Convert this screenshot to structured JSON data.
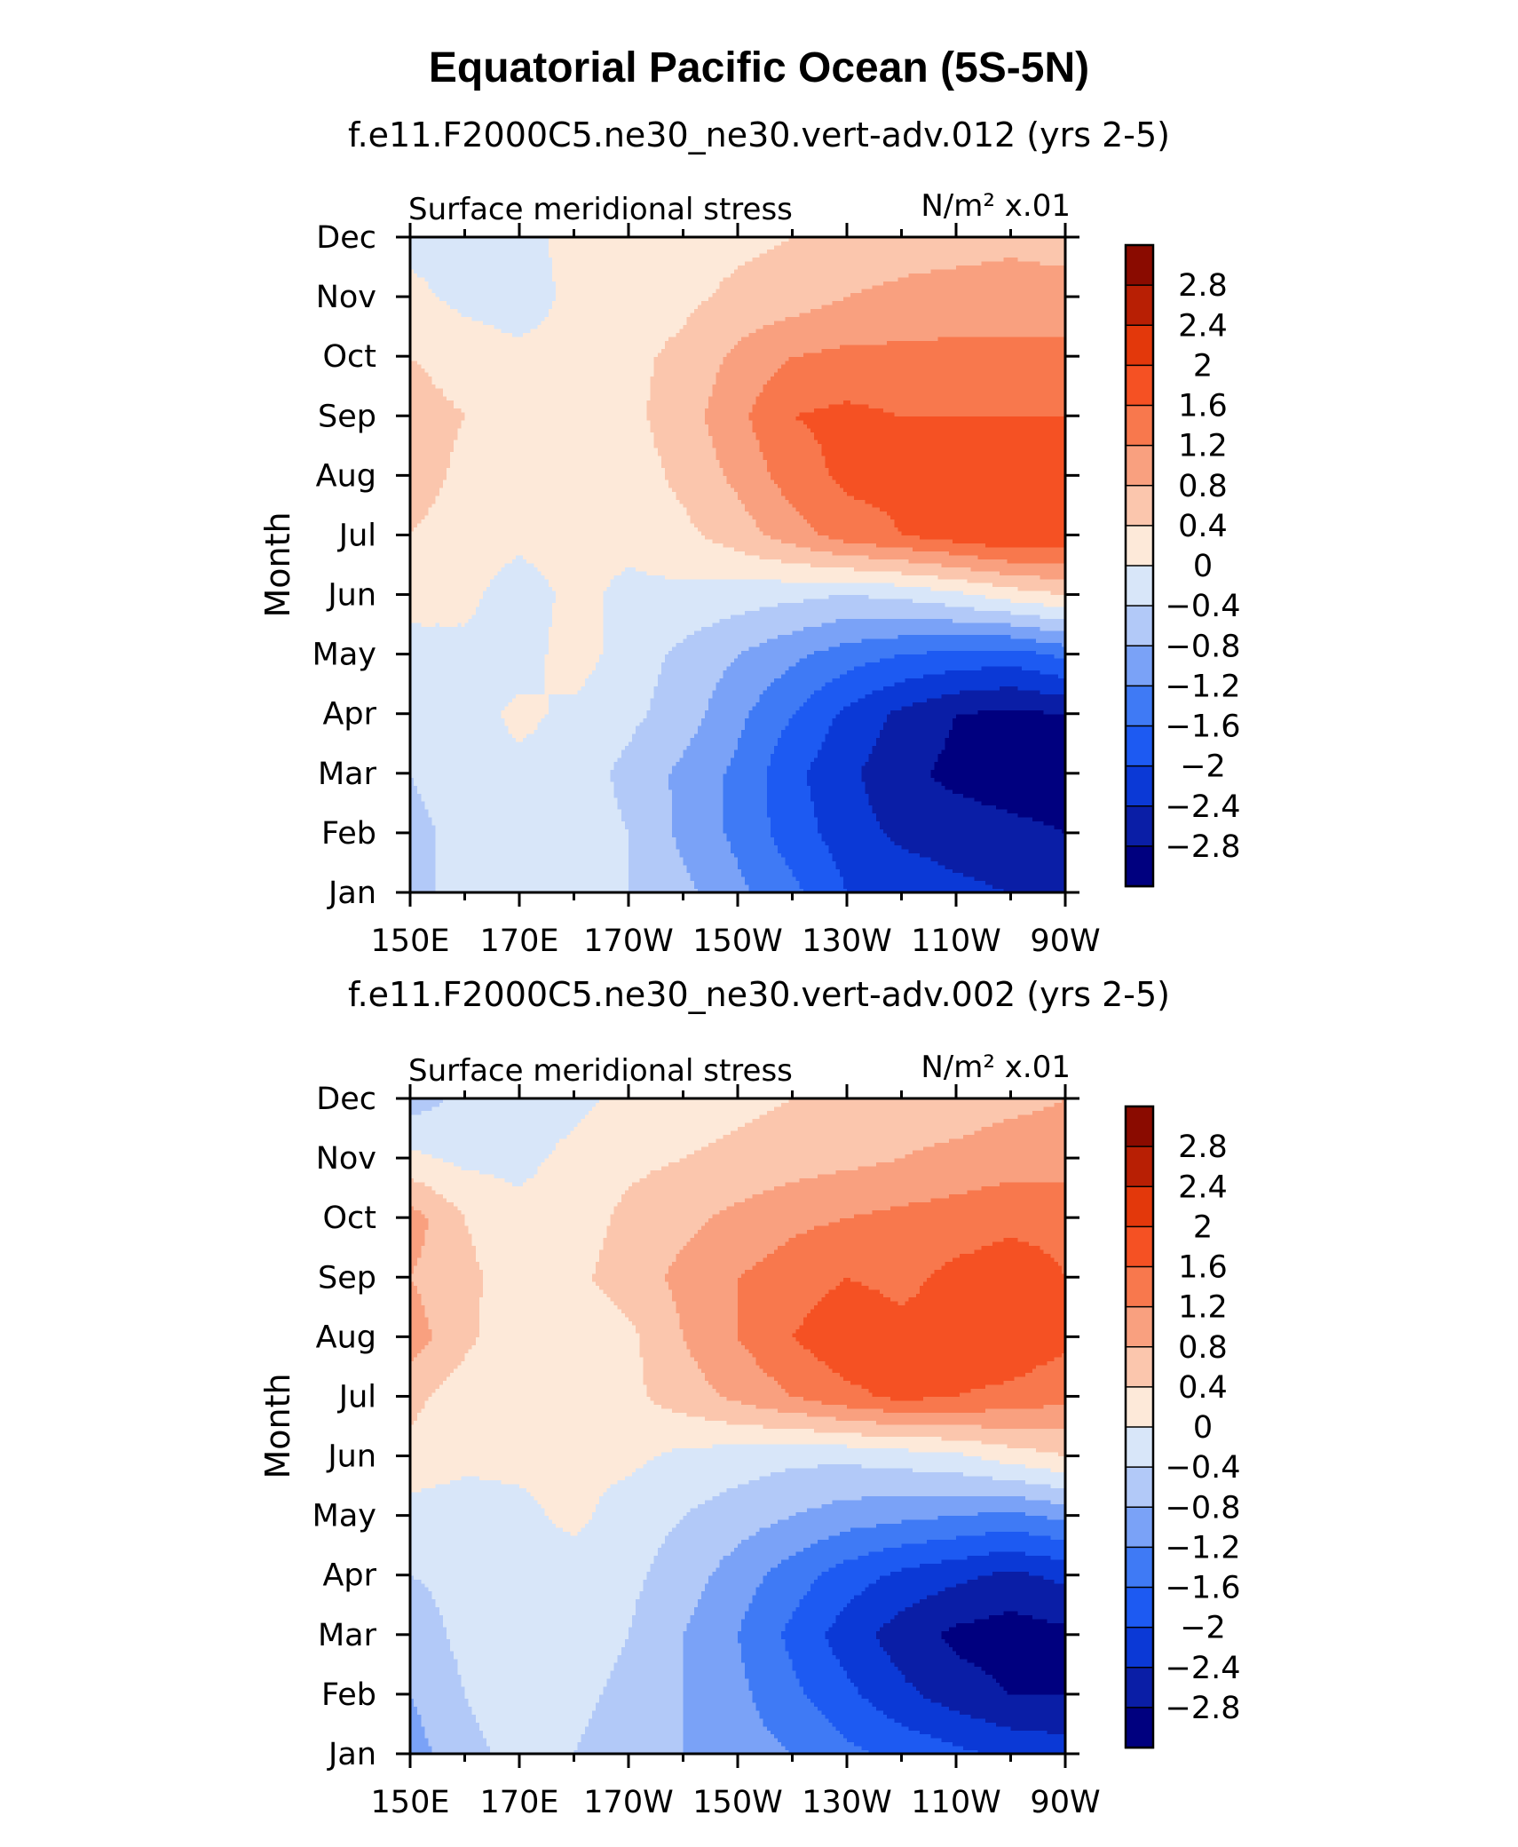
{
  "figure": {
    "title": "Equatorial Pacific Ocean (5S-5N)"
  },
  "chart_data": [
    {
      "type": "heatmap",
      "subtitle": "f.e11.F2000C5.ne30_ne30.vert-adv.012 (yrs 2-5)",
      "left_label": "Surface meridional stress",
      "right_label": "N/m² x.01",
      "xlabel": "",
      "ylabel": "Month",
      "x": [
        150,
        160,
        170,
        180,
        190,
        200,
        210,
        220,
        230,
        240,
        250,
        260,
        270
      ],
      "x_tick_positions": [
        150,
        170,
        190,
        210,
        230,
        250,
        270
      ],
      "x_tick_labels": [
        "150E",
        "170E",
        "170W",
        "150W",
        "130W",
        "110W",
        "90W"
      ],
      "xlim": [
        150,
        270
      ],
      "y_tick_labels": [
        "Jan",
        "Feb",
        "Mar",
        "Apr",
        "May",
        "Jun",
        "Jul",
        "Aug",
        "Sep",
        "Oct",
        "Nov",
        "Dec"
      ],
      "ylim": [
        1,
        12
      ],
      "z": [
        [
          -0.5,
          -0.3,
          -0.2,
          -0.2,
          -0.4,
          -0.7,
          -1.1,
          -1.5,
          -2.0,
          -2.1,
          -2.3,
          -2.4,
          -2.5
        ],
        [
          -0.5,
          -0.3,
          -0.2,
          -0.2,
          -0.4,
          -0.9,
          -1.3,
          -1.8,
          -2.2,
          -2.5,
          -2.6,
          -2.7,
          -2.8
        ],
        [
          -0.4,
          -0.2,
          -0.1,
          -0.2,
          -0.5,
          -0.9,
          -1.3,
          -1.9,
          -2.3,
          -2.7,
          -2.9,
          -3.0,
          -3.0
        ],
        [
          -0.3,
          -0.2,
          0.1,
          -0.1,
          -0.3,
          -0.6,
          -1.1,
          -1.6,
          -2.1,
          -2.5,
          -2.8,
          -2.9,
          -2.8
        ],
        [
          -0.2,
          -0.1,
          -0.2,
          0.2,
          -0.2,
          -0.5,
          -0.8,
          -1.1,
          -1.4,
          -1.6,
          -1.7,
          -1.8,
          -1.5
        ],
        [
          0.2,
          0.1,
          -0.2,
          0.1,
          -0.1,
          -0.1,
          -0.2,
          -0.3,
          -0.4,
          -0.3,
          -0.1,
          0.2,
          0.4
        ],
        [
          0.4,
          0.2,
          0.1,
          0.2,
          0.1,
          0.3,
          0.6,
          1.0,
          1.4,
          1.6,
          1.8,
          2.0,
          1.9
        ],
        [
          0.6,
          0.3,
          0.1,
          0.1,
          0.2,
          0.5,
          0.9,
          1.4,
          1.7,
          1.7,
          1.7,
          1.8,
          1.8
        ],
        [
          0.6,
          0.4,
          0.2,
          0.1,
          0.3,
          0.6,
          1.1,
          1.6,
          1.7,
          1.6,
          1.6,
          1.6,
          1.6
        ],
        [
          0.4,
          0.2,
          0.1,
          0.1,
          0.3,
          0.5,
          0.9,
          1.2,
          1.3,
          1.3,
          1.3,
          1.3,
          1.3
        ],
        [
          0.1,
          -0.1,
          -0.2,
          0.1,
          0.2,
          0.3,
          0.5,
          0.6,
          0.8,
          0.9,
          1.0,
          1.0,
          1.0
        ],
        [
          -0.1,
          -0.2,
          -0.1,
          0.1,
          0.1,
          0.2,
          0.3,
          0.4,
          0.5,
          0.6,
          0.6,
          0.7,
          0.6
        ]
      ],
      "levels": [
        -2.8,
        -2.4,
        -2.0,
        -1.6,
        -1.2,
        -0.8,
        -0.4,
        0,
        0.4,
        0.8,
        1.2,
        1.6,
        2.0,
        2.4,
        2.8
      ],
      "colorbar_labels": [
        "2.8",
        "2.4",
        "2",
        "1.6",
        "1.2",
        "0.8",
        "0.4",
        "0",
        "−0.4",
        "−0.8",
        "−1.2",
        "−1.6",
        "−2",
        "−2.4",
        "−2.8"
      ],
      "colors": [
        "#00007f",
        "#0a1ea6",
        "#0b39d6",
        "#1d5af2",
        "#3f7af5",
        "#7aa2f7",
        "#b2c9f8",
        "#d8e6f9",
        "#fde9d9",
        "#fbc6ad",
        "#f9a07f",
        "#f8784d",
        "#f55123",
        "#e3380b",
        "#b81f04",
        "#8a0b00"
      ]
    },
    {
      "type": "heatmap",
      "subtitle": "f.e11.F2000C5.ne30_ne30.vert-adv.002 (yrs 2-5)",
      "left_label": "Surface meridional stress",
      "right_label": "N/m² x.01",
      "xlabel": "",
      "ylabel": "Month",
      "x": [
        150,
        160,
        170,
        180,
        190,
        200,
        210,
        220,
        230,
        240,
        250,
        260,
        270
      ],
      "x_tick_positions": [
        150,
        170,
        190,
        210,
        230,
        250,
        270
      ],
      "x_tick_labels": [
        "150E",
        "170E",
        "170W",
        "150W",
        "130W",
        "110W",
        "90W"
      ],
      "xlim": [
        150,
        270
      ],
      "y_tick_labels": [
        "Jan",
        "Feb",
        "Mar",
        "Apr",
        "May",
        "Jun",
        "Jul",
        "Aug",
        "Sep",
        "Oct",
        "Nov",
        "Dec"
      ],
      "ylim": [
        1,
        12
      ],
      "z": [
        [
          -1.0,
          -0.5,
          -0.3,
          -0.4,
          -0.6,
          -0.8,
          -1.0,
          -1.2,
          -1.5,
          -1.7,
          -1.9,
          -2.1,
          -2.2
        ],
        [
          -0.8,
          -0.4,
          -0.2,
          -0.3,
          -0.5,
          -0.8,
          -1.1,
          -1.5,
          -1.9,
          -2.3,
          -2.6,
          -2.8,
          -2.8
        ],
        [
          -0.6,
          -0.3,
          -0.2,
          -0.2,
          -0.4,
          -0.8,
          -1.2,
          -1.7,
          -2.2,
          -2.6,
          -2.9,
          -3.0,
          -2.9
        ],
        [
          -0.4,
          -0.3,
          -0.2,
          -0.2,
          -0.3,
          -0.6,
          -1.0,
          -1.4,
          -1.8,
          -2.1,
          -2.3,
          -2.5,
          -2.3
        ],
        [
          -0.2,
          -0.2,
          -0.1,
          0.1,
          -0.2,
          -0.4,
          -0.6,
          -0.8,
          -1.0,
          -1.1,
          -1.2,
          -1.3,
          -1.1
        ],
        [
          0.3,
          0.1,
          0.1,
          0.1,
          0.1,
          -0.1,
          -0.2,
          -0.3,
          -0.3,
          -0.2,
          -0.1,
          0.2,
          0.4
        ],
        [
          0.5,
          0.2,
          0.1,
          0.2,
          0.3,
          0.6,
          0.9,
          1.2,
          1.5,
          1.7,
          1.6,
          1.5,
          1.3
        ],
        [
          1.0,
          0.5,
          0.1,
          0.1,
          0.3,
          0.8,
          1.2,
          1.6,
          1.9,
          1.7,
          1.8,
          1.9,
          1.7
        ],
        [
          0.8,
          0.5,
          0.2,
          0.3,
          0.6,
          0.9,
          1.2,
          1.4,
          1.6,
          1.5,
          1.7,
          1.8,
          1.6
        ],
        [
          1.0,
          0.4,
          0.1,
          0.2,
          0.5,
          0.7,
          0.9,
          1.1,
          1.2,
          1.3,
          1.4,
          1.5,
          1.5
        ],
        [
          0.1,
          -0.1,
          -0.1,
          0.1,
          0.3,
          0.4,
          0.5,
          0.6,
          0.7,
          0.8,
          0.9,
          1.0,
          1.0
        ],
        [
          -0.6,
          -0.3,
          -0.2,
          -0.1,
          0.1,
          0.2,
          0.3,
          0.4,
          0.5,
          0.6,
          0.6,
          0.7,
          0.8
        ]
      ],
      "levels": [
        -2.8,
        -2.4,
        -2.0,
        -1.6,
        -1.2,
        -0.8,
        -0.4,
        0,
        0.4,
        0.8,
        1.2,
        1.6,
        2.0,
        2.4,
        2.8
      ],
      "colorbar_labels": [
        "2.8",
        "2.4",
        "2",
        "1.6",
        "1.2",
        "0.8",
        "0.4",
        "0",
        "−0.4",
        "−0.8",
        "−1.2",
        "−1.6",
        "−2",
        "−2.4",
        "−2.8"
      ],
      "colors": [
        "#00007f",
        "#0a1ea6",
        "#0b39d6",
        "#1d5af2",
        "#3f7af5",
        "#7aa2f7",
        "#b2c9f8",
        "#d8e6f9",
        "#fde9d9",
        "#fbc6ad",
        "#f9a07f",
        "#f8784d",
        "#f55123",
        "#e3380b",
        "#b81f04",
        "#8a0b00"
      ]
    }
  ]
}
